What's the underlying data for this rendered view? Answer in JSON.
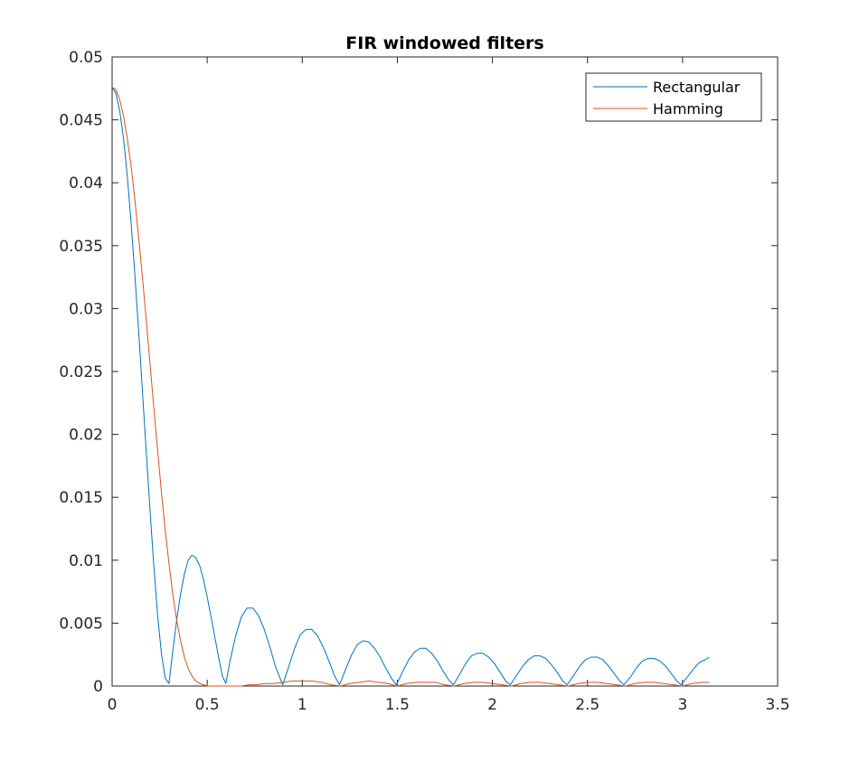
{
  "chart_data": {
    "type": "line",
    "title": "FIR windowed filters",
    "xlabel": "",
    "ylabel": "",
    "xlim": [
      0,
      3.5
    ],
    "ylim": [
      0,
      0.05
    ],
    "x_ticks": [
      0,
      0.5,
      1,
      1.5,
      2,
      2.5,
      3,
      3.5
    ],
    "x_tick_labels": [
      "0",
      "0.5",
      "1",
      "1.5",
      "2",
      "2.5",
      "3",
      "3.5"
    ],
    "y_ticks": [
      0,
      0.005,
      0.01,
      0.015,
      0.02,
      0.025,
      0.03,
      0.035,
      0.04,
      0.045,
      0.05
    ],
    "y_tick_labels": [
      "0",
      "0.005",
      "0.01",
      "0.015",
      "0.02",
      "0.025",
      "0.03",
      "0.035",
      "0.04",
      "0.045",
      "0.05"
    ],
    "grid": false,
    "legend_position": "top-right",
    "series": [
      {
        "name": "Rectangular",
        "color": "#0072BD",
        "x": [
          0,
          0.02,
          0.04,
          0.06,
          0.08,
          0.1,
          0.12,
          0.14,
          0.16,
          0.18,
          0.2,
          0.22,
          0.24,
          0.26,
          0.28,
          0.299,
          0.32,
          0.34,
          0.36,
          0.38,
          0.4,
          0.42,
          0.44,
          0.46,
          0.48,
          0.5,
          0.52,
          0.54,
          0.56,
          0.58,
          0.598,
          0.62,
          0.65,
          0.68,
          0.71,
          0.74,
          0.77,
          0.8,
          0.83,
          0.86,
          0.897,
          0.93,
          0.96,
          0.99,
          1.02,
          1.05,
          1.08,
          1.11,
          1.14,
          1.17,
          1.196,
          1.23,
          1.26,
          1.29,
          1.32,
          1.35,
          1.38,
          1.41,
          1.44,
          1.47,
          1.495,
          1.53,
          1.56,
          1.59,
          1.62,
          1.65,
          1.68,
          1.71,
          1.74,
          1.77,
          1.795,
          1.83,
          1.86,
          1.89,
          1.92,
          1.95,
          1.98,
          2.01,
          2.04,
          2.07,
          2.094,
          2.13,
          2.16,
          2.19,
          2.22,
          2.25,
          2.28,
          2.31,
          2.34,
          2.37,
          2.393,
          2.43,
          2.46,
          2.49,
          2.52,
          2.55,
          2.58,
          2.61,
          2.64,
          2.67,
          2.692,
          2.73,
          2.76,
          2.79,
          2.82,
          2.85,
          2.88,
          2.91,
          2.94,
          2.97,
          2.992,
          3.03,
          3.06,
          3.09,
          3.12,
          3.14
        ],
        "y": [
          0.0476,
          0.0471,
          0.0457,
          0.0435,
          0.0405,
          0.0368,
          0.0326,
          0.0281,
          0.0233,
          0.0185,
          0.0138,
          0.0094,
          0.0055,
          0.0025,
          0.0006,
          0.0002,
          0.0029,
          0.0053,
          0.0073,
          0.0089,
          0.01,
          0.0104,
          0.0102,
          0.0096,
          0.0085,
          0.0071,
          0.0055,
          0.0039,
          0.0023,
          0.0008,
          0.0002,
          0.002,
          0.004,
          0.0055,
          0.0062,
          0.0062,
          0.0056,
          0.0045,
          0.0031,
          0.0015,
          0.0001,
          0.0016,
          0.003,
          0.0041,
          0.0045,
          0.0045,
          0.004,
          0.0031,
          0.002,
          0.0008,
          0.0001,
          0.0014,
          0.0025,
          0.0033,
          0.0036,
          0.0035,
          0.003,
          0.0023,
          0.0014,
          0.0006,
          0.0001,
          0.0012,
          0.0021,
          0.0027,
          0.003,
          0.003,
          0.0026,
          0.002,
          0.0012,
          0.0005,
          0.0001,
          0.001,
          0.0018,
          0.0024,
          0.0026,
          0.0026,
          0.0023,
          0.0018,
          0.0011,
          0.0004,
          0.0001,
          0.0009,
          0.0016,
          0.0021,
          0.0024,
          0.0024,
          0.0022,
          0.0017,
          0.0011,
          0.0004,
          0.0001,
          0.0009,
          0.0016,
          0.0021,
          0.0023,
          0.0023,
          0.0021,
          0.0016,
          0.001,
          0.0004,
          0.0001,
          0.0008,
          0.0015,
          0.002,
          0.0022,
          0.0022,
          0.002,
          0.0016,
          0.001,
          0.0004,
          0.0001,
          0.0008,
          0.0014,
          0.0019,
          0.0021,
          0.0023
        ]
      },
      {
        "name": "Hamming",
        "color": "#D95319",
        "x": [
          0,
          0.02,
          0.04,
          0.06,
          0.08,
          0.1,
          0.12,
          0.14,
          0.16,
          0.18,
          0.2,
          0.22,
          0.24,
          0.26,
          0.28,
          0.3,
          0.32,
          0.34,
          0.36,
          0.38,
          0.4,
          0.42,
          0.44,
          0.46,
          0.48,
          0.5,
          0.52,
          0.54,
          0.56,
          0.58,
          0.6,
          0.62,
          0.64,
          0.66,
          0.68,
          0.72,
          0.76,
          0.8,
          0.85,
          0.9,
          0.95,
          1.0,
          1.05,
          1.1,
          1.15,
          1.2,
          1.25,
          1.3,
          1.35,
          1.4,
          1.45,
          1.5,
          1.55,
          1.6,
          1.65,
          1.7,
          1.75,
          1.8,
          1.85,
          1.9,
          1.95,
          2.0,
          2.05,
          2.1,
          2.15,
          2.2,
          2.25,
          2.3,
          2.35,
          2.4,
          2.45,
          2.5,
          2.55,
          2.6,
          2.65,
          2.7,
          2.75,
          2.8,
          2.85,
          2.9,
          2.95,
          3.0,
          3.05,
          3.1,
          3.14
        ],
        "y": [
          0.0476,
          0.0474,
          0.0466,
          0.0453,
          0.0435,
          0.0413,
          0.0386,
          0.0356,
          0.0324,
          0.029,
          0.0255,
          0.022,
          0.0186,
          0.0153,
          0.0123,
          0.0096,
          0.0072,
          0.0052,
          0.0036,
          0.0023,
          0.0014,
          0.0008,
          0.0004,
          0.0002,
          0.0001,
          0.0,
          0.0,
          0.0,
          0.0,
          0.0,
          0.0,
          0.0,
          0.0,
          0.0,
          0.0,
          0.0001,
          0.0001,
          0.0002,
          0.0002,
          0.0003,
          0.0004,
          0.0004,
          0.0004,
          0.0003,
          0.0001,
          0.0,
          0.0002,
          0.0003,
          0.0004,
          0.0003,
          0.0002,
          0.0,
          0.0002,
          0.0003,
          0.0003,
          0.0003,
          0.0001,
          0.0,
          0.0002,
          0.0003,
          0.0003,
          0.0002,
          0.0001,
          0.0,
          0.0002,
          0.0003,
          0.0003,
          0.0002,
          0.0001,
          0.0,
          0.0002,
          0.0003,
          0.0003,
          0.0002,
          0.0001,
          0.0,
          0.0002,
          0.0003,
          0.0003,
          0.0002,
          0.0001,
          0.0,
          0.0002,
          0.0003,
          0.0003
        ]
      }
    ]
  }
}
